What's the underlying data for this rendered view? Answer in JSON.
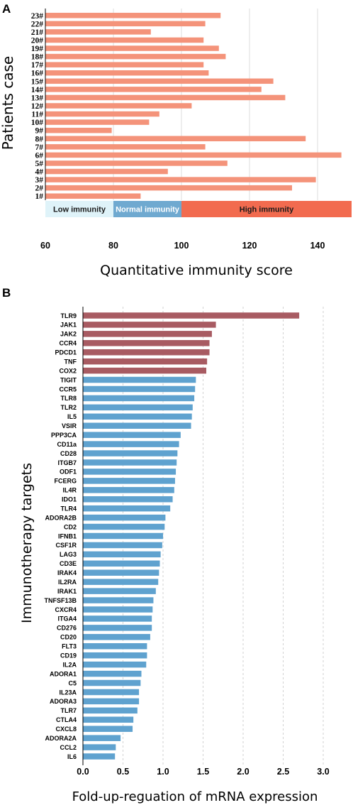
{
  "panels": {
    "a": {
      "letter": "A"
    },
    "b": {
      "letter": "B"
    }
  },
  "chart_data": [
    {
      "type": "bar",
      "orientation": "horizontal",
      "xlabel": "Quantitative immunity score",
      "ylabel": "Patients case",
      "xlim": [
        60,
        150
      ],
      "xticks": [
        60,
        80,
        100,
        120,
        140
      ],
      "grid": "vertical",
      "bar_color": "#f4937a",
      "categories": [
        "1#",
        "2#",
        "3#",
        "4#",
        "5#",
        "6#",
        "7#",
        "8#",
        "9#",
        "10#",
        "11#",
        "12#",
        "13#",
        "14#",
        "15#",
        "16#",
        "17#",
        "18#",
        "19#",
        "20#",
        "21#",
        "22#",
        "23#"
      ],
      "values": [
        88,
        132.5,
        139.5,
        96,
        113.5,
        147,
        107,
        136.5,
        79.5,
        90.5,
        93.5,
        103,
        130.5,
        123.5,
        127,
        108,
        106.5,
        113,
        111,
        106.5,
        91,
        107,
        111.5
      ],
      "bands": [
        {
          "label": "Low immunity",
          "range": [
            60,
            80
          ],
          "color": "#dff3f9",
          "text_color": "#1a1a1a"
        },
        {
          "label": "Normal immunity",
          "range": [
            80,
            100
          ],
          "color": "#6fa9d0",
          "text_color": "#ffffff"
        },
        {
          "label": "High immunity",
          "range": [
            100,
            150
          ],
          "color": "#f26b4f",
          "text_color": "#1a1a1a"
        }
      ]
    },
    {
      "type": "bar",
      "orientation": "horizontal",
      "xlabel": "Fold-up-reguation of mRNA expression",
      "ylabel": "Immunotherapy targets",
      "xlim": [
        0,
        3.0
      ],
      "xticks": [
        0.0,
        0.5,
        1.0,
        1.5,
        2.0,
        2.5,
        3.0
      ],
      "grid": "vertical-dashed",
      "categories": [
        "TLR9",
        "JAK1",
        "JAK2",
        "CCR4",
        "PDCD1",
        "TNF",
        "COX2",
        "TIGIT",
        "CCR5",
        "TLR8",
        "TLR2",
        "IL5",
        "VSIR",
        "PPP3CA",
        "CD11a",
        "CD28",
        "ITGB7",
        "ODF1",
        "FCERG",
        "IL4R",
        "IDO1",
        "TLR4",
        "ADORA2B",
        "CD2",
        "IFNB1",
        "CSF1R",
        "LAG3",
        "CD3E",
        "IRAK4",
        "IL2RA",
        "IRAK1",
        "TNFSF13B",
        "CXCR4",
        "ITGA4",
        "CD276",
        "CD20",
        "FLT3",
        "CD19",
        "IL2A",
        "ADORA1",
        "C5",
        "IL23A",
        "ADORA3",
        "TLR7",
        "CTLA4",
        "CXCL8",
        "ADORA2A",
        "CCL2",
        "IL6"
      ],
      "values": [
        2.7,
        1.66,
        1.61,
        1.58,
        1.58,
        1.55,
        1.54,
        1.41,
        1.4,
        1.39,
        1.37,
        1.36,
        1.35,
        1.22,
        1.2,
        1.18,
        1.17,
        1.16,
        1.15,
        1.14,
        1.12,
        1.09,
        1.03,
        1.02,
        1.0,
        0.99,
        0.97,
        0.96,
        0.95,
        0.94,
        0.91,
        0.88,
        0.87,
        0.86,
        0.86,
        0.84,
        0.8,
        0.8,
        0.79,
        0.73,
        0.72,
        0.7,
        0.7,
        0.68,
        0.63,
        0.62,
        0.47,
        0.41,
        0.4
      ],
      "series_colors": {
        "top": "#a85b62",
        "rest": "#5fa2cf"
      },
      "top_count": 7
    }
  ]
}
